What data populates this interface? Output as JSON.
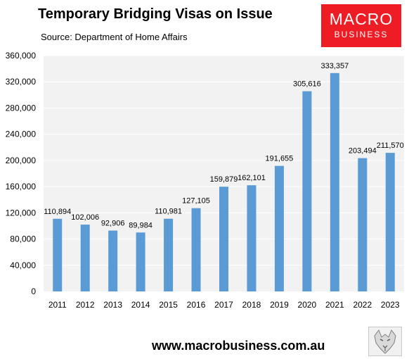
{
  "header": {
    "title": "Temporary Bridging Visas on Issue",
    "source": "Source: Department of Home Affairs"
  },
  "logo": {
    "line1": "MACRO",
    "line2": "BUSINESS",
    "background_color": "#ee1c24"
  },
  "footer": {
    "website": "www.macrobusiness.com.au",
    "wolf_logo_icon": "wolf-head-icon"
  },
  "chart_data": {
    "type": "bar",
    "categories": [
      "2011",
      "2012",
      "2013",
      "2014",
      "2015",
      "2016",
      "2017",
      "2018",
      "2019",
      "2020",
      "2021",
      "2022",
      "2023"
    ],
    "values": [
      110894,
      102006,
      92906,
      89984,
      110981,
      127105,
      159879,
      162101,
      191655,
      305616,
      333357,
      203494,
      211570
    ],
    "data_labels": [
      "110,894",
      "102,006",
      "92,906",
      "89,984",
      "110,981",
      "127,105",
      "159,879",
      "162,101",
      "191,655",
      "305,616",
      "333,357",
      "203,494",
      "211,570"
    ],
    "title": "Temporary Bridging Visas on Issue",
    "xlabel": "",
    "ylabel": "",
    "ylim": [
      0,
      360000
    ],
    "yticks": [
      0,
      40000,
      80000,
      120000,
      160000,
      200000,
      240000,
      280000,
      320000,
      360000
    ],
    "ytick_labels": [
      "0",
      "40,000",
      "80,000",
      "120,000",
      "160,000",
      "200,000",
      "240,000",
      "280,000",
      "320,000",
      "360,000"
    ],
    "bar_color": "#5b9bd5",
    "plot_background": "#f2f2f2",
    "gridlines": true,
    "gridline_color": "#ffffff",
    "legend": "none"
  }
}
